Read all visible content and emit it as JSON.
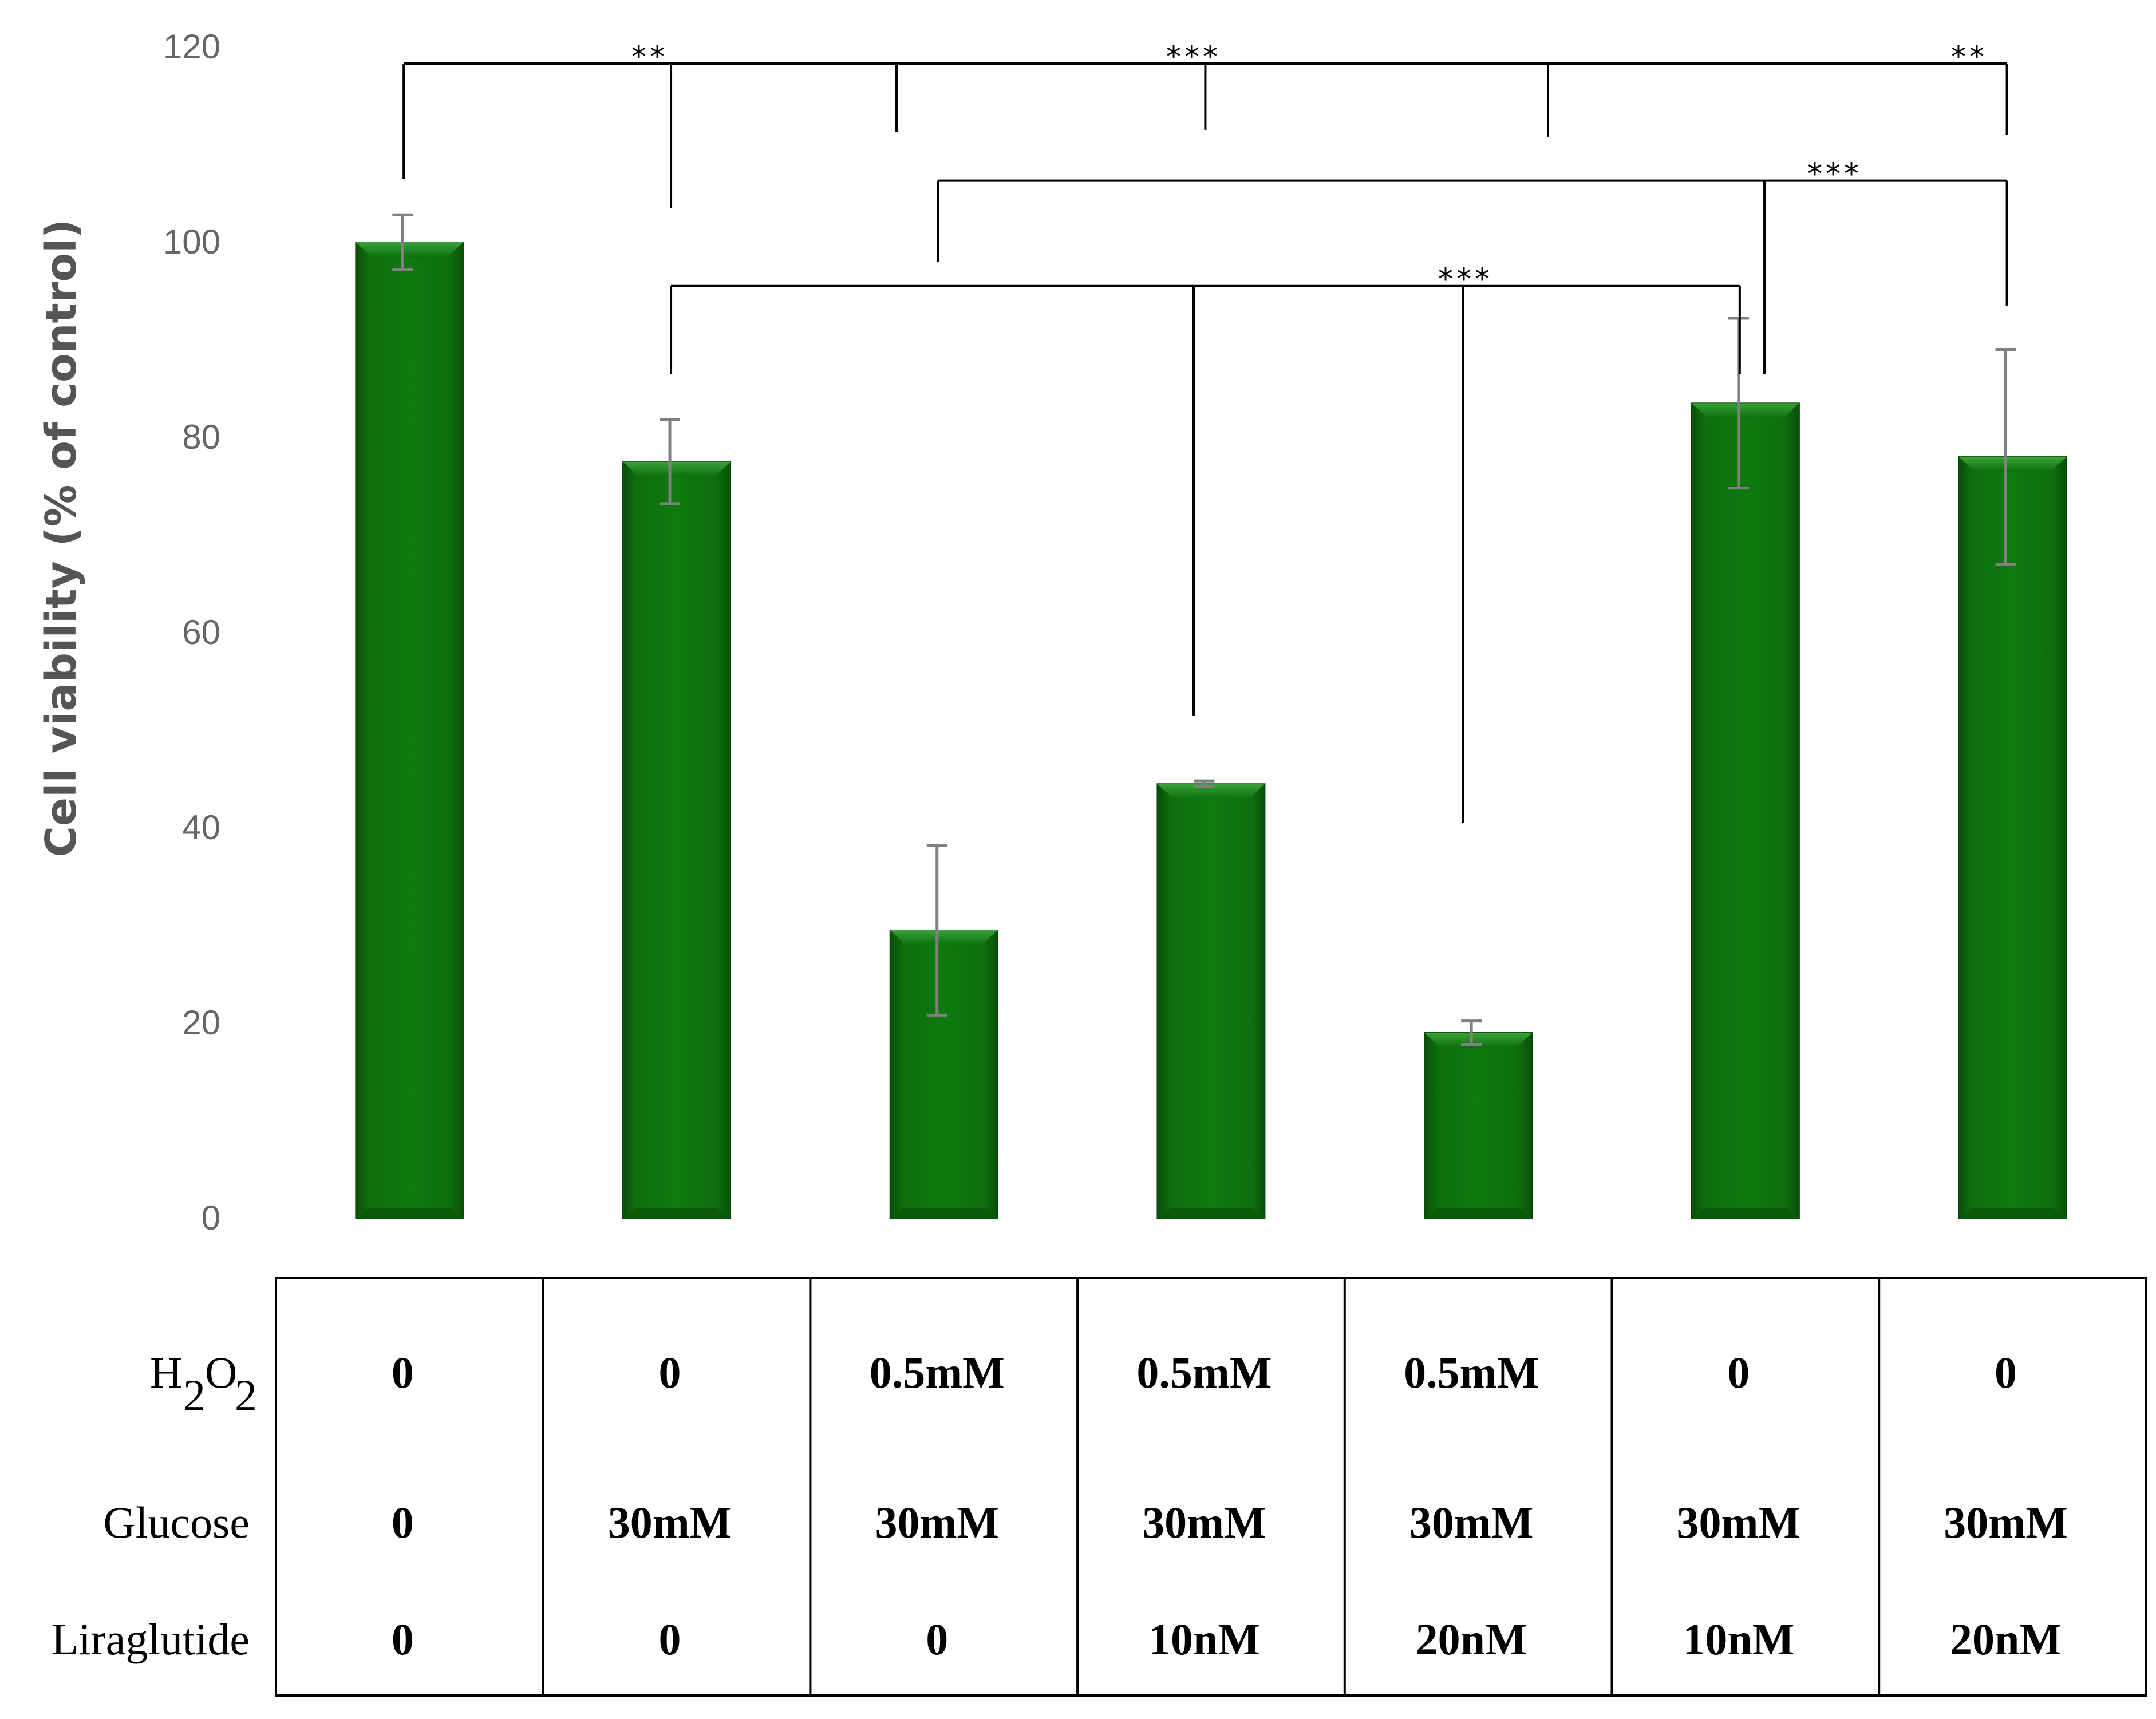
{
  "chart_data": {
    "type": "bar",
    "title": "",
    "xlabel": "",
    "ylabel": "Cell viability (% of control)",
    "ylim": [
      0,
      120
    ],
    "yticks": [
      "0",
      "20",
      "40",
      "60",
      "80",
      "100",
      "120"
    ],
    "grid": false,
    "legend": "none",
    "bar_color": "#0b6b0b",
    "error_bar_color": "#808080",
    "series": [
      {
        "values": [
          100,
          77.5,
          29.5,
          44.5,
          19,
          83.5,
          78
        ],
        "errors": [
          2.8,
          4.3,
          8.7,
          0.3,
          1.2,
          8.7,
          11
        ]
      }
    ],
    "significance": [
      {
        "label": "**",
        "from": 0,
        "to": 1
      },
      {
        "label": "***",
        "from": 0,
        "to": 3
      },
      {
        "label": "**",
        "from": 0,
        "to": 6
      },
      {
        "label": "***",
        "from": 2,
        "to": 6
      },
      {
        "label": "***",
        "from": 1,
        "to": 5
      }
    ],
    "conditions_table": {
      "rows": [
        {
          "label": "H",
          "sub": "2",
          "label2": "O",
          "sub2": "2",
          "values": [
            "0",
            "0",
            "0.5mM",
            "0.5mM",
            "0.5mM",
            "0",
            "0"
          ]
        },
        {
          "label": "Glucose",
          "values": [
            "0",
            "30mM",
            "30mM",
            "30mM",
            "30mM",
            "30mM",
            "30mM"
          ]
        },
        {
          "label": "Liraglutide",
          "values": [
            "0",
            "0",
            "0",
            "10nM",
            "20nM",
            "10nM",
            "20nM"
          ]
        }
      ]
    }
  }
}
